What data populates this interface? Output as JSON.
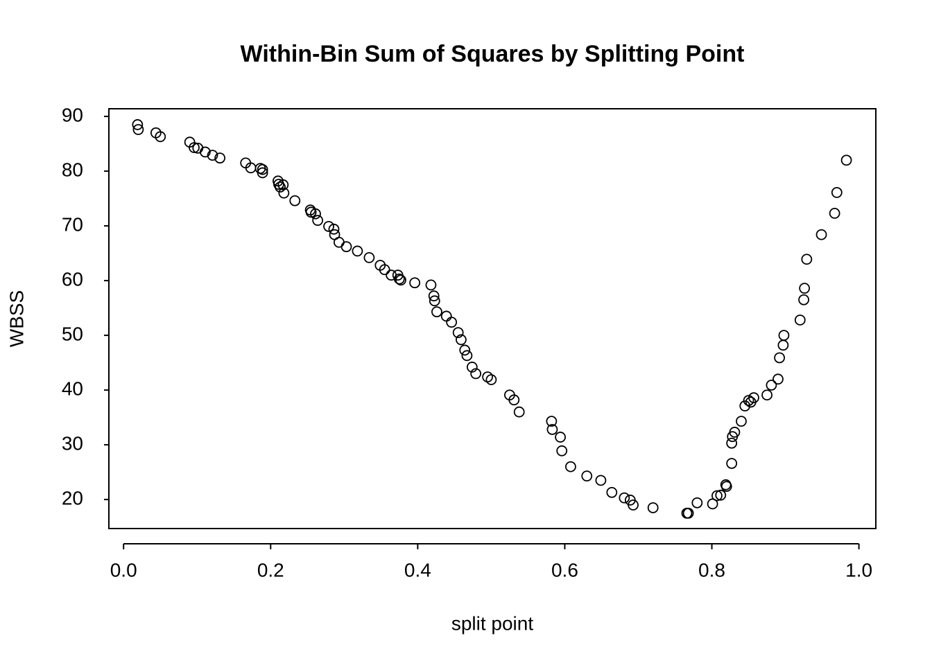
{
  "chart_data": {
    "type": "scatter",
    "title": "Within-Bin Sum of Squares by Splitting Point",
    "x_label": "split point",
    "y_label": "WBSS",
    "xlim": [
      -0.02,
      1.023
    ],
    "ylim": [
      14.7,
      91.4
    ],
    "xticks": [
      {
        "value": 0,
        "label": "0.0"
      },
      0.2,
      0.4,
      0.6,
      0.8,
      {
        "value": 1,
        "label": "1.0"
      }
    ],
    "yticks": [
      20,
      30,
      40,
      50,
      60,
      70,
      80,
      90
    ],
    "color": "#000000",
    "x": [
      0.019,
      0.02,
      0.044,
      0.05,
      0.09,
      0.096,
      0.101,
      0.111,
      0.121,
      0.131,
      0.166,
      0.173,
      0.186,
      0.189,
      0.189,
      0.21,
      0.211,
      0.213,
      0.217,
      0.218,
      0.233,
      0.254,
      0.255,
      0.261,
      0.264,
      0.279,
      0.286,
      0.287,
      0.293,
      0.303,
      0.318,
      0.334,
      0.349,
      0.355,
      0.364,
      0.373,
      0.375,
      0.377,
      0.396,
      0.418,
      0.422,
      0.423,
      0.426,
      0.439,
      0.446,
      0.455,
      0.459,
      0.464,
      0.467,
      0.474,
      0.479,
      0.495,
      0.5,
      0.525,
      0.531,
      0.538,
      0.582,
      0.583,
      0.594,
      0.596,
      0.608,
      0.63,
      0.649,
      0.664,
      0.681,
      0.689,
      0.693,
      0.72,
      0.766,
      0.768,
      0.78,
      0.801,
      0.807,
      0.812,
      0.819,
      0.82,
      0.827,
      0.827,
      0.828,
      0.831,
      0.84,
      0.845,
      0.85,
      0.853,
      0.857,
      0.875,
      0.881,
      0.89,
      0.892,
      0.897,
      0.898,
      0.92,
      0.925,
      0.926,
      0.929,
      0.949,
      0.967,
      0.97,
      0.983
    ],
    "values": [
      88.5,
      87.6,
      87.0,
      86.3,
      85.3,
      84.3,
      84.2,
      83.5,
      82.9,
      82.4,
      81.5,
      80.6,
      80.5,
      80.3,
      79.7,
      78.2,
      77.6,
      77.1,
      77.5,
      76.0,
      74.6,
      72.9,
      72.5,
      72.2,
      71.0,
      69.9,
      69.4,
      68.4,
      67.0,
      66.2,
      65.4,
      64.2,
      62.8,
      62.0,
      61.0,
      61.0,
      60.3,
      60.1,
      59.6,
      59.2,
      57.2,
      56.3,
      54.3,
      53.5,
      52.4,
      50.5,
      49.2,
      47.3,
      46.3,
      44.2,
      43.0,
      42.4,
      41.9,
      39.1,
      38.2,
      36.0,
      34.3,
      32.8,
      31.4,
      28.9,
      26.0,
      24.3,
      23.5,
      21.3,
      20.3,
      19.9,
      19.0,
      18.5,
      17.5,
      17.5,
      19.4,
      19.2,
      20.7,
      20.8,
      22.7,
      22.4,
      26.6,
      30.3,
      31.5,
      32.3,
      34.3,
      37.1,
      38.1,
      37.8,
      38.6,
      39.1,
      40.9,
      42.0,
      45.9,
      48.2,
      50.0,
      52.8,
      56.5,
      58.6,
      63.9,
      68.4,
      72.3,
      76.1,
      82.0
    ]
  }
}
